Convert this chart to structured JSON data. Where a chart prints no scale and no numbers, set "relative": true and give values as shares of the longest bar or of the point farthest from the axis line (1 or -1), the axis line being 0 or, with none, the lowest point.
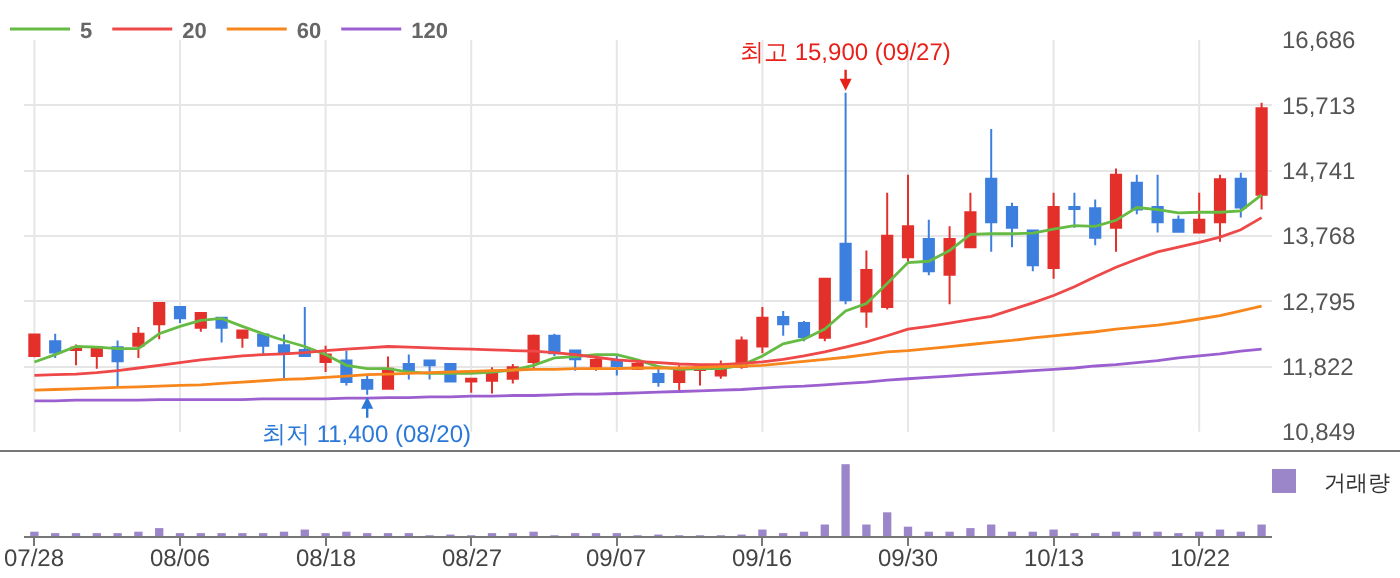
{
  "chart_data": [
    {
      "type": "candlestick",
      "categories": [
        "07/28",
        null,
        null,
        null,
        null,
        null,
        null,
        "08/06",
        null,
        null,
        null,
        null,
        null,
        null,
        "08/18",
        null,
        null,
        null,
        null,
        null,
        null,
        "08/27",
        null,
        null,
        null,
        null,
        null,
        null,
        "09/07",
        null,
        null,
        null,
        null,
        null,
        null,
        "09/16",
        null,
        null,
        null,
        null,
        null,
        null,
        "09/30",
        null,
        null,
        null,
        null,
        null,
        null,
        "10/13",
        null,
        null,
        null,
        null,
        null,
        null,
        "10/22",
        null,
        null,
        null
      ],
      "ohlc": [
        [
          11980,
          12300,
          11960,
          12300
        ],
        [
          12200,
          12310,
          11950,
          12030
        ],
        [
          12070,
          12150,
          11840,
          12100
        ],
        [
          11980,
          12110,
          11790,
          12110
        ],
        [
          12110,
          12210,
          11520,
          11900
        ],
        [
          12130,
          12410,
          11950,
          12310
        ],
        [
          12450,
          12770,
          12230,
          12770
        ],
        [
          12710,
          12710,
          12470,
          12540
        ],
        [
          12400,
          12620,
          12340,
          12620
        ],
        [
          12550,
          12550,
          12180,
          12400
        ],
        [
          12250,
          12360,
          12100,
          12360
        ],
        [
          12300,
          12300,
          11980,
          12130
        ],
        [
          12140,
          12300,
          11630,
          12040
        ],
        [
          12070,
          12710,
          11980,
          11980
        ],
        [
          11890,
          12130,
          11740,
          12000
        ],
        [
          11910,
          12060,
          11540,
          11590
        ],
        [
          11620,
          11690,
          11400,
          11490
        ],
        [
          11490,
          11970,
          11490,
          11790
        ],
        [
          11860,
          12000,
          11630,
          11770
        ],
        [
          11910,
          11910,
          11630,
          11840
        ],
        [
          11860,
          11860,
          11600,
          11600
        ],
        [
          11600,
          11640,
          11430,
          11640
        ],
        [
          11610,
          11810,
          11420,
          11710
        ],
        [
          11640,
          11860,
          11570,
          11810
        ],
        [
          11890,
          12300,
          11790,
          12280
        ],
        [
          12280,
          12310,
          11980,
          12020
        ],
        [
          12060,
          12060,
          11760,
          11930
        ],
        [
          11820,
          11980,
          11760,
          11920
        ],
        [
          11910,
          11980,
          11690,
          11830
        ],
        [
          11790,
          11910,
          11770,
          11860
        ],
        [
          11710,
          11840,
          11520,
          11590
        ],
        [
          11590,
          11840,
          11430,
          11770
        ],
        [
          11770,
          11840,
          11540,
          11820
        ],
        [
          11690,
          11910,
          11640,
          11810
        ],
        [
          11820,
          12270,
          11790,
          12210
        ],
        [
          12120,
          12710,
          12020,
          12550
        ],
        [
          12560,
          12650,
          12280,
          12450
        ],
        [
          12470,
          12500,
          12200,
          12260
        ],
        [
          12250,
          13130,
          12200,
          13130
        ],
        [
          13650,
          15900,
          12750,
          12810
        ],
        [
          12640,
          13550,
          12400,
          13260
        ],
        [
          12710,
          14410,
          12670,
          13770
        ],
        [
          13450,
          14680,
          13370,
          13910
        ],
        [
          13720,
          14010,
          13180,
          13240
        ],
        [
          13190,
          13910,
          12750,
          13720
        ],
        [
          13600,
          14410,
          13600,
          14120
        ],
        [
          14620,
          15360,
          13530,
          13970
        ],
        [
          14200,
          14260,
          13600,
          13890
        ],
        [
          13850,
          13850,
          13240,
          13330
        ],
        [
          13290,
          14410,
          13130,
          14200
        ],
        [
          14200,
          14410,
          13890,
          14170
        ],
        [
          14180,
          14310,
          13630,
          13740
        ],
        [
          13890,
          14770,
          13530,
          14680
        ],
        [
          14560,
          14680,
          14090,
          14160
        ],
        [
          14200,
          14680,
          13820,
          13970
        ],
        [
          14010,
          14070,
          13830,
          13830
        ],
        [
          13820,
          14410,
          13820,
          14010
        ],
        [
          13970,
          14680,
          13680,
          14610
        ],
        [
          14620,
          14710,
          14040,
          14190
        ],
        [
          14380,
          15750,
          14160,
          15670
        ]
      ],
      "colors": [
        "#e3302b",
        "#3c7fde",
        "#e3302b",
        "#e3302b",
        "#3c7fde",
        "#e3302b",
        "#e3302b",
        "#3c7fde",
        "#e3302b",
        "#3c7fde",
        "#e3302b",
        "#3c7fde",
        "#3c7fde",
        "#3c7fde",
        "#e3302b",
        "#3c7fde",
        "#3c7fde",
        "#e3302b",
        "#3c7fde",
        "#3c7fde",
        "#3c7fde",
        "#e3302b",
        "#e3302b",
        "#e3302b",
        "#e3302b",
        "#3c7fde",
        "#3c7fde",
        "#e3302b",
        "#3c7fde",
        "#e3302b",
        "#3c7fde",
        "#e3302b",
        "#e3302b",
        "#e3302b",
        "#e3302b",
        "#e3302b",
        "#3c7fde",
        "#3c7fde",
        "#e3302b",
        "#3c7fde",
        "#e3302b",
        "#e3302b",
        "#e3302b",
        "#3c7fde",
        "#e3302b",
        "#e3302b",
        "#3c7fde",
        "#3c7fde",
        "#3c7fde",
        "#e3302b",
        "#3c7fde",
        "#3c7fde",
        "#e3302b",
        "#3c7fde",
        "#3c7fde",
        "#3c7fde",
        "#e3302b",
        "#e3302b",
        "#3c7fde",
        "#e3302b"
      ],
      "series": [
        {
          "type": "line",
          "name": "5",
          "color": "#66bb44",
          "values": [
            11890,
            12000,
            12120,
            12110,
            12090,
            12090,
            12310,
            12420,
            12510,
            12540,
            12420,
            12310,
            12210,
            12120,
            12000,
            11840,
            11790,
            11790,
            11740,
            11720,
            11720,
            11720,
            11740,
            11770,
            11840,
            11950,
            11970,
            12000,
            12000,
            11920,
            11820,
            11780,
            11790,
            11790,
            11840,
            11980,
            12160,
            12230,
            12380,
            12650,
            12760,
            13060,
            13370,
            13390,
            13550,
            13790,
            13800,
            13800,
            13810,
            13870,
            13920,
            13910,
            14000,
            14190,
            14160,
            14110,
            14120,
            14120,
            14140,
            14380
          ]
        },
        {
          "type": "line",
          "name": "20",
          "color": "#ee4848",
          "values": [
            11690,
            11700,
            11710,
            11730,
            11760,
            11800,
            11840,
            11880,
            11920,
            11950,
            11980,
            12000,
            12010,
            12030,
            12060,
            12080,
            12100,
            12120,
            12110,
            12100,
            12090,
            12080,
            12070,
            12060,
            12050,
            12030,
            12000,
            11960,
            11920,
            11900,
            11880,
            11860,
            11850,
            11850,
            11870,
            11890,
            11930,
            11980,
            12040,
            12110,
            12190,
            12280,
            12380,
            12420,
            12470,
            12520,
            12570,
            12670,
            12770,
            12880,
            13010,
            13160,
            13300,
            13420,
            13530,
            13600,
            13670,
            13750,
            13860,
            14040
          ]
        },
        {
          "type": "line",
          "name": "60",
          "color": "#f7861c",
          "values": [
            11470,
            11480,
            11490,
            11500,
            11510,
            11520,
            11530,
            11540,
            11550,
            11570,
            11590,
            11610,
            11630,
            11640,
            11660,
            11680,
            11700,
            11710,
            11720,
            11730,
            11740,
            11750,
            11760,
            11770,
            11780,
            11780,
            11790,
            11790,
            11790,
            11800,
            11800,
            11800,
            11810,
            11820,
            11830,
            11840,
            11870,
            11900,
            11930,
            11960,
            12000,
            12040,
            12060,
            12090,
            12120,
            12150,
            12180,
            12210,
            12250,
            12280,
            12310,
            12340,
            12380,
            12410,
            12440,
            12480,
            12530,
            12580,
            12650,
            12720
          ]
        },
        {
          "type": "line",
          "name": "120",
          "color": "#9c5fd0",
          "values": [
            11310,
            11310,
            11320,
            11320,
            11320,
            11320,
            11330,
            11330,
            11330,
            11330,
            11330,
            11340,
            11340,
            11340,
            11340,
            11350,
            11350,
            11360,
            11360,
            11370,
            11370,
            11380,
            11380,
            11390,
            11390,
            11400,
            11410,
            11410,
            11420,
            11430,
            11440,
            11450,
            11460,
            11470,
            11480,
            11500,
            11520,
            11530,
            11550,
            11570,
            11590,
            11620,
            11640,
            11660,
            11680,
            11700,
            11720,
            11740,
            11760,
            11780,
            11800,
            11830,
            11850,
            11880,
            11910,
            11950,
            11980,
            12010,
            12050,
            12080
          ]
        }
      ],
      "ylim": [
        10849,
        16686
      ],
      "yticks": [
        {
          "value": 10849,
          "label": "10,849"
        },
        {
          "value": 11822,
          "label": "11,822"
        },
        {
          "value": 12795,
          "label": "12,795"
        },
        {
          "value": 13768,
          "label": "13,768"
        },
        {
          "value": 14741,
          "label": "14,741"
        },
        {
          "value": 15713,
          "label": "15,713"
        },
        {
          "value": 16686,
          "label": "16,686"
        }
      ],
      "grid": true,
      "legend": "top left",
      "annotations": [
        {
          "text": "최고 15,900 (09/27)",
          "y": 15900
        },
        {
          "text": "최저 11,400 (08/20)",
          "y": 11400
        }
      ]
    },
    {
      "type": "bar",
      "relative": true,
      "categories": [
        null,
        null,
        null,
        null,
        null,
        null,
        null,
        null,
        null,
        null,
        null,
        null,
        null,
        null,
        null,
        null,
        null,
        null,
        null,
        null,
        null,
        null,
        null,
        null,
        null,
        null,
        null,
        null,
        null,
        null,
        null,
        null,
        null,
        null,
        null,
        null,
        null,
        null,
        null,
        null,
        null,
        null,
        null,
        null,
        null,
        null,
        null,
        null,
        null,
        null,
        null,
        null,
        null,
        null,
        null,
        null,
        null,
        null,
        null,
        null
      ],
      "series": [
        {
          "name": "거래량",
          "color": "#9b86c9",
          "values": [
            0.06,
            0.04,
            0.04,
            0.04,
            0.04,
            0.06,
            0.11,
            0.04,
            0.04,
            0.04,
            0.04,
            0.04,
            0.06,
            0.09,
            0.04,
            0.06,
            0.04,
            0.04,
            0.04,
            0.01,
            0.02,
            0.01,
            0.04,
            0.04,
            0.06,
            0.01,
            0.04,
            0.04,
            0.04,
            0.01,
            0.02,
            0.01,
            0.01,
            0.01,
            0.02,
            0.09,
            0.04,
            0.06,
            0.16,
            1,
            0.16,
            0.33,
            0.13,
            0.06,
            0.06,
            0.11,
            0.16,
            0.06,
            0.06,
            0.09,
            0.04,
            0.04,
            0.06,
            0.06,
            0.06,
            0.04,
            0.06,
            0.09,
            0.06,
            0.16
          ]
        }
      ],
      "legend": "top right"
    }
  ]
}
